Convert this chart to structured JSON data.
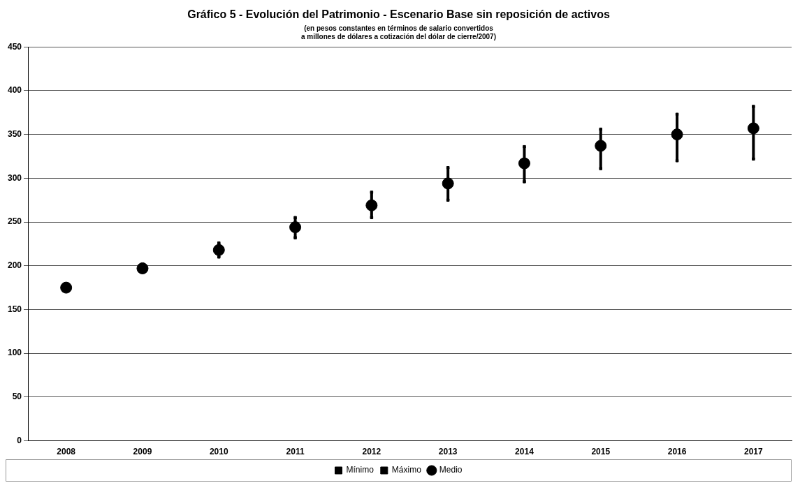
{
  "chart_data": {
    "type": "scatter",
    "title": "Gráfico 5 - Evolución del Patrimonio - Escenario Base sin reposición de activos",
    "subtitle": "(en pesos constantes en términos de salario convertidos\na millones de dólares a cotización del dólar de cierre/2007)",
    "categories": [
      "2008",
      "2009",
      "2010",
      "2011",
      "2012",
      "2013",
      "2014",
      "2015",
      "2016",
      "2017"
    ],
    "series": [
      {
        "name": "Mínimo",
        "color": "#000000",
        "marker": "square",
        "values": [
          null,
          null,
          210,
          232,
          255,
          275,
          296,
          311,
          320,
          322
        ]
      },
      {
        "name": "Máximo",
        "color": "#000000",
        "marker": "square",
        "values": [
          null,
          202,
          226,
          255,
          284,
          312,
          336,
          356,
          373,
          382
        ]
      },
      {
        "name": "Medio",
        "color": "#000000",
        "marker": "circle",
        "values": [
          175,
          197,
          218,
          244,
          269,
          294,
          317,
          337,
          350,
          357
        ]
      }
    ],
    "ylim": [
      0,
      450
    ],
    "yticks": [
      0,
      50,
      100,
      150,
      200,
      250,
      300,
      350,
      400,
      450
    ],
    "grid": "y",
    "legend": "bottom"
  }
}
